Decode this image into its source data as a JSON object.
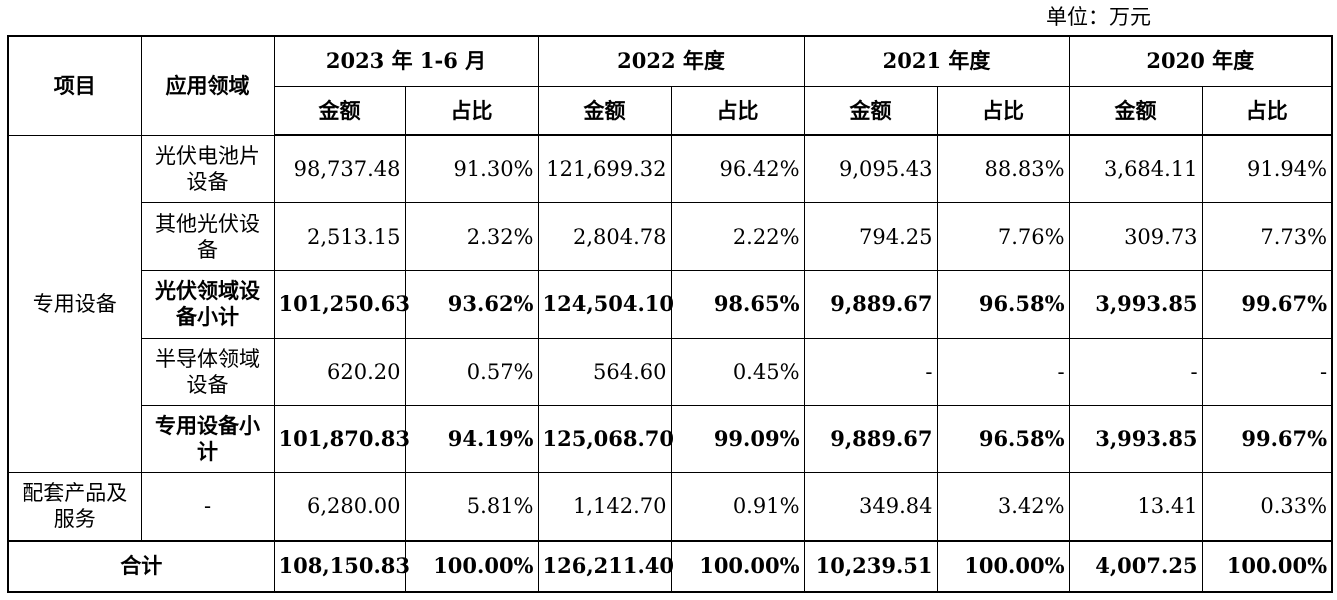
{
  "unit_label": "单位：万元",
  "headers": {
    "item": "项目",
    "field": "应用领域",
    "periods": [
      "2023 年 1-6 月",
      "2022 年度",
      "2021 年度",
      "2020 年度"
    ],
    "amount": "金额",
    "ratio": "占比"
  },
  "group_label": "专用设备",
  "rows": [
    {
      "label": "光伏电池片设备",
      "cells": [
        "98,737.48",
        "91.30%",
        "121,699.32",
        "96.42%",
        "9,095.43",
        "88.83%",
        "3,684.11",
        "91.94%"
      ]
    },
    {
      "label": "其他光伏设备",
      "cells": [
        "2,513.15",
        "2.32%",
        "2,804.78",
        "2.22%",
        "794.25",
        "7.76%",
        "309.73",
        "7.73%"
      ]
    },
    {
      "label": "光伏领域设备小计",
      "cells": [
        "101,250.63",
        "93.62%",
        "124,504.10",
        "98.65%",
        "9,889.67",
        "96.58%",
        "3,993.85",
        "99.67%"
      ]
    },
    {
      "label": "半导体领域设备",
      "cells": [
        "620.20",
        "0.57%",
        "564.60",
        "0.45%",
        "-",
        "-",
        "-",
        "-"
      ]
    },
    {
      "label": "专用设备小计",
      "cells": [
        "101,870.83",
        "94.19%",
        "125,068.70",
        "99.09%",
        "9,889.67",
        "96.58%",
        "3,993.85",
        "99.67%"
      ]
    }
  ],
  "supporting": {
    "item": "配套产品及服务",
    "field": "-",
    "cells": [
      "6,280.00",
      "5.81%",
      "1,142.70",
      "0.91%",
      "349.84",
      "3.42%",
      "13.41",
      "0.33%"
    ]
  },
  "total": {
    "label": "合计",
    "cells": [
      "108,150.83",
      "100.00%",
      "126,211.40",
      "100.00%",
      "10,239.51",
      "100.00%",
      "4,007.25",
      "100.00%"
    ]
  }
}
